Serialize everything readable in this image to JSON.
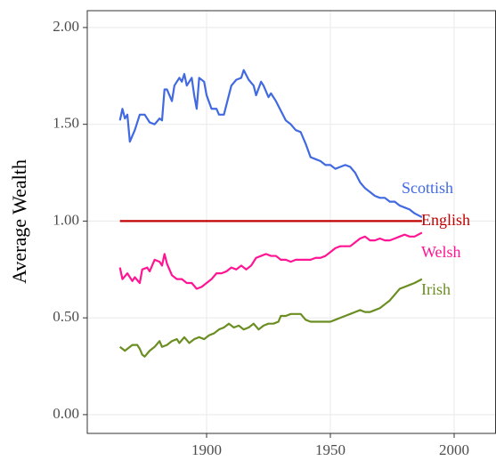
{
  "chart_data": {
    "type": "line",
    "y_label": "Average Wealth",
    "xlim": [
      1851.8,
      2016.9
    ],
    "ylim": [
      -0.097,
      2.087
    ],
    "xticks": [
      1900,
      1950,
      2000
    ],
    "yticks": [
      {
        "value": 0,
        "label": "0.00"
      },
      {
        "value": 0.5,
        "label": "0.50"
      },
      {
        "value": 1,
        "label": "1.00"
      },
      {
        "value": 1.5,
        "label": "1.50"
      },
      {
        "value": 2,
        "label": "2.00"
      }
    ],
    "grid": true,
    "series": [
      {
        "name": "Scottish",
        "color": "#4169e1",
        "x": [
          1865,
          1866,
          1867,
          1868,
          1869,
          1871,
          1873,
          1875,
          1877,
          1879,
          1881,
          1882,
          1883,
          1884,
          1886,
          1887,
          1889,
          1890,
          1891,
          1892,
          1894,
          1895,
          1896,
          1897,
          1899,
          1900,
          1902,
          1904,
          1905,
          1907,
          1908,
          1910,
          1912,
          1914,
          1915,
          1917,
          1919,
          1920,
          1922,
          1923,
          1925,
          1926,
          1928,
          1930,
          1932,
          1934,
          1936,
          1938,
          1940,
          1942,
          1944,
          1946,
          1948,
          1950,
          1952,
          1954,
          1956,
          1958,
          1960,
          1962,
          1964,
          1966,
          1968,
          1970,
          1972,
          1974,
          1976,
          1978,
          1980,
          1982,
          1984,
          1987
        ],
        "values": [
          1.52,
          1.58,
          1.53,
          1.55,
          1.41,
          1.47,
          1.55,
          1.55,
          1.51,
          1.5,
          1.53,
          1.52,
          1.68,
          1.68,
          1.62,
          1.7,
          1.74,
          1.72,
          1.76,
          1.7,
          1.74,
          1.65,
          1.58,
          1.74,
          1.72,
          1.65,
          1.58,
          1.58,
          1.55,
          1.55,
          1.6,
          1.7,
          1.73,
          1.74,
          1.78,
          1.73,
          1.7,
          1.65,
          1.72,
          1.7,
          1.64,
          1.66,
          1.62,
          1.57,
          1.52,
          1.5,
          1.47,
          1.46,
          1.4,
          1.33,
          1.32,
          1.31,
          1.29,
          1.29,
          1.27,
          1.28,
          1.29,
          1.28,
          1.25,
          1.2,
          1.17,
          1.15,
          1.13,
          1.12,
          1.12,
          1.1,
          1.1,
          1.08,
          1.07,
          1.06,
          1.04,
          1.02
        ]
      },
      {
        "name": "English",
        "color": "#c00000",
        "x": [
          1865,
          1987
        ],
        "values": [
          1.0,
          1.0
        ]
      },
      {
        "name": "Welsh",
        "color": "#ff1493",
        "x": [
          1865,
          1866,
          1868,
          1870,
          1871,
          1873,
          1874,
          1876,
          1877,
          1879,
          1881,
          1882,
          1883,
          1884,
          1886,
          1888,
          1890,
          1892,
          1894,
          1896,
          1898,
          1900,
          1902,
          1904,
          1906,
          1908,
          1910,
          1912,
          1914,
          1916,
          1918,
          1920,
          1922,
          1924,
          1926,
          1928,
          1930,
          1932,
          1934,
          1936,
          1938,
          1940,
          1942,
          1944,
          1946,
          1948,
          1950,
          1952,
          1954,
          1956,
          1958,
          1960,
          1962,
          1964,
          1966,
          1968,
          1970,
          1972,
          1974,
          1976,
          1978,
          1980,
          1982,
          1984,
          1987
        ],
        "values": [
          0.76,
          0.7,
          0.73,
          0.69,
          0.71,
          0.68,
          0.75,
          0.76,
          0.74,
          0.8,
          0.79,
          0.77,
          0.83,
          0.78,
          0.72,
          0.7,
          0.7,
          0.68,
          0.68,
          0.65,
          0.66,
          0.68,
          0.7,
          0.73,
          0.73,
          0.74,
          0.76,
          0.75,
          0.77,
          0.75,
          0.77,
          0.81,
          0.82,
          0.83,
          0.82,
          0.82,
          0.8,
          0.8,
          0.79,
          0.8,
          0.8,
          0.8,
          0.8,
          0.81,
          0.81,
          0.82,
          0.84,
          0.86,
          0.87,
          0.87,
          0.87,
          0.89,
          0.91,
          0.92,
          0.9,
          0.9,
          0.91,
          0.9,
          0.9,
          0.91,
          0.92,
          0.93,
          0.92,
          0.92,
          0.94
        ]
      },
      {
        "name": "Irish",
        "color": "#6b8e23",
        "x": [
          1865,
          1867,
          1868,
          1870,
          1872,
          1873,
          1874,
          1875,
          1877,
          1879,
          1881,
          1882,
          1884,
          1886,
          1888,
          1889,
          1891,
          1893,
          1895,
          1897,
          1899,
          1901,
          1903,
          1905,
          1907,
          1909,
          1911,
          1913,
          1915,
          1917,
          1919,
          1921,
          1923,
          1925,
          1927,
          1929,
          1930,
          1932,
          1934,
          1936,
          1938,
          1940,
          1942,
          1944,
          1946,
          1948,
          1950,
          1952,
          1954,
          1956,
          1958,
          1960,
          1962,
          1964,
          1966,
          1968,
          1970,
          1972,
          1974,
          1976,
          1978,
          1980,
          1982,
          1984,
          1987
        ],
        "values": [
          0.35,
          0.33,
          0.34,
          0.36,
          0.36,
          0.34,
          0.31,
          0.3,
          0.33,
          0.35,
          0.38,
          0.35,
          0.36,
          0.38,
          0.39,
          0.37,
          0.4,
          0.37,
          0.39,
          0.4,
          0.39,
          0.41,
          0.42,
          0.44,
          0.45,
          0.47,
          0.45,
          0.46,
          0.44,
          0.45,
          0.47,
          0.44,
          0.46,
          0.47,
          0.47,
          0.48,
          0.51,
          0.51,
          0.52,
          0.52,
          0.52,
          0.49,
          0.48,
          0.48,
          0.48,
          0.48,
          0.48,
          0.49,
          0.5,
          0.51,
          0.52,
          0.53,
          0.54,
          0.53,
          0.53,
          0.54,
          0.55,
          0.57,
          0.59,
          0.62,
          0.65,
          0.66,
          0.67,
          0.68,
          0.7
        ]
      }
    ]
  }
}
